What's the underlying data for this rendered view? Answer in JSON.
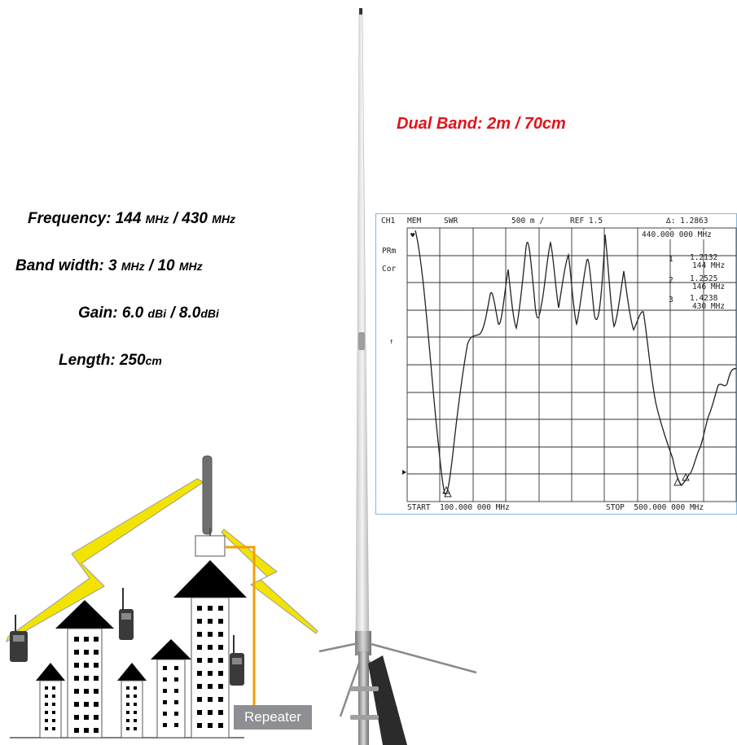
{
  "header": {
    "band_title": "Dual Band: 2m / 70cm"
  },
  "specs": [
    {
      "label": "Frequency: 144 ",
      "u1": "MHz",
      "mid": " / 430 ",
      "u2": "MHz"
    },
    {
      "label": "Band width:  3 ",
      "u1": "MHz",
      "mid": " / 10 ",
      "u2": "MHz"
    },
    {
      "label": "Gain: 6.0 ",
      "u1": "dBi",
      "mid": " / 8.0",
      "u2": "dBi"
    },
    {
      "label": "Length: 250",
      "u1": "cm",
      "mid": "",
      "u2": ""
    }
  ],
  "analyzer": {
    "ch": "CH1",
    "mem": "MEM",
    "mode": "SWR",
    "scale": "500 m /",
    "ref": "REF 1.5",
    "marker_main": "∆: 1.2863",
    "marker_main_freq": "440.000 000 MHz",
    "prm": "PRm",
    "cor": "Cor",
    "m1_val": "1.2132",
    "m1_freq": "144 MHz",
    "m2_val": "1.2525",
    "m2_freq": "146 MHz",
    "m3_val": "1.4238",
    "m3_freq": "430 MHz",
    "m1_num": "1",
    "m2_num": "2",
    "m3_num": "3",
    "start": "START  100.000 000 MHz",
    "stop": "STOP  500.000 000 MHz"
  },
  "scene": {
    "repeater_label": "Repeater"
  },
  "colors": {
    "band_title": "#e0141b",
    "bolt": "#f2e400",
    "feedline": "#f0a000",
    "repeater_box": "#8d8f93"
  },
  "icons": [
    "radio-icon",
    "antenna-icon",
    "lightning-icon",
    "building-icon",
    "repeater-icon"
  ]
}
